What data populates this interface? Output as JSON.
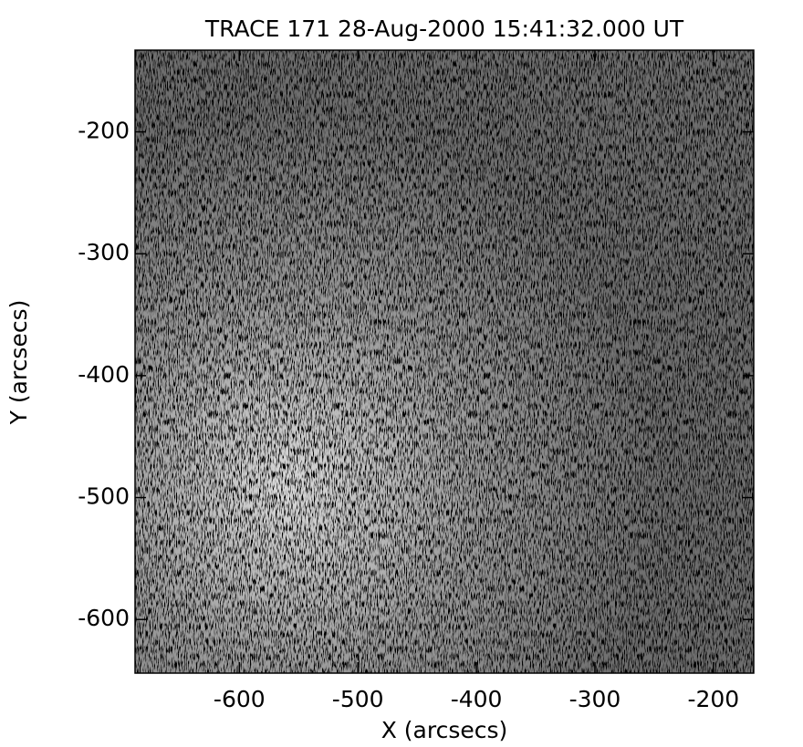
{
  "chart_data": {
    "type": "image",
    "title": "TRACE 171 28-Aug-2000 15:41:32.000 UT",
    "x_label": "X (arcsecs)",
    "y_label": "Y (arcsecs)",
    "xlim": [
      -688,
      -166
    ],
    "xticks": [
      -600,
      -500,
      -400,
      -300,
      -200
    ],
    "ylim": [
      -644,
      -133
    ],
    "yticks": [
      -600,
      -500,
      -400,
      -300,
      -200
    ],
    "colormap": "gray"
  }
}
